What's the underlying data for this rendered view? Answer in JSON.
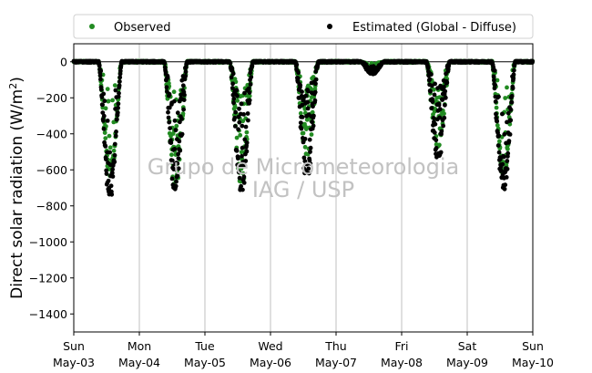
{
  "chart_data": {
    "type": "scatter",
    "ylabel": "Direct solar radiation (W/m²)",
    "ylabel_main": "Direct solar radiation (W/m",
    "ylabel_sup": "2",
    "ylabel_close": ")",
    "ylim": [
      -1500,
      100
    ],
    "yticks": [
      0,
      -200,
      -400,
      -600,
      -800,
      -1000,
      -1200,
      -1400
    ],
    "xlim": [
      "2020-05-03",
      "2020-05-10"
    ],
    "xticks": [
      {
        "day": "Sun",
        "date": "May-03"
      },
      {
        "day": "Mon",
        "date": "May-04"
      },
      {
        "day": "Tue",
        "date": "May-05"
      },
      {
        "day": "Wed",
        "date": "May-06"
      },
      {
        "day": "Thu",
        "date": "May-07"
      },
      {
        "day": "Fri",
        "date": "May-08"
      },
      {
        "day": "Sat",
        "date": "May-09"
      },
      {
        "day": "Sun",
        "date": "May-10"
      }
    ],
    "grid": "vertical",
    "legend_position": "top",
    "zero_line": true,
    "series": [
      {
        "name": "Observed",
        "color": "#228b22",
        "daily_minimum": [
          {
            "date": "2020-05-03",
            "min": -640
          },
          {
            "date": "2020-05-04",
            "min": -680
          },
          {
            "date": "2020-05-05",
            "min": -670
          },
          {
            "date": "2020-05-06",
            "min": -530
          },
          {
            "date": "2020-05-07",
            "min": -30
          },
          {
            "date": "2020-05-08",
            "min": -480
          },
          {
            "date": "2020-05-09",
            "min": -650
          }
        ]
      },
      {
        "name": "Estimated (Global - Diffuse)",
        "color": "#000000",
        "daily_minimum": [
          {
            "date": "2020-05-03",
            "min": -745
          },
          {
            "date": "2020-05-04",
            "min": -710
          },
          {
            "date": "2020-05-05",
            "min": -715
          },
          {
            "date": "2020-05-06",
            "min": -620
          },
          {
            "date": "2020-05-07",
            "min": -70
          },
          {
            "date": "2020-05-08",
            "min": -530
          },
          {
            "date": "2020-05-09",
            "min": -735
          }
        ]
      }
    ]
  },
  "watermark": {
    "line1": "Grupo de Micrometeorologia",
    "line2": "IAG / USP"
  }
}
